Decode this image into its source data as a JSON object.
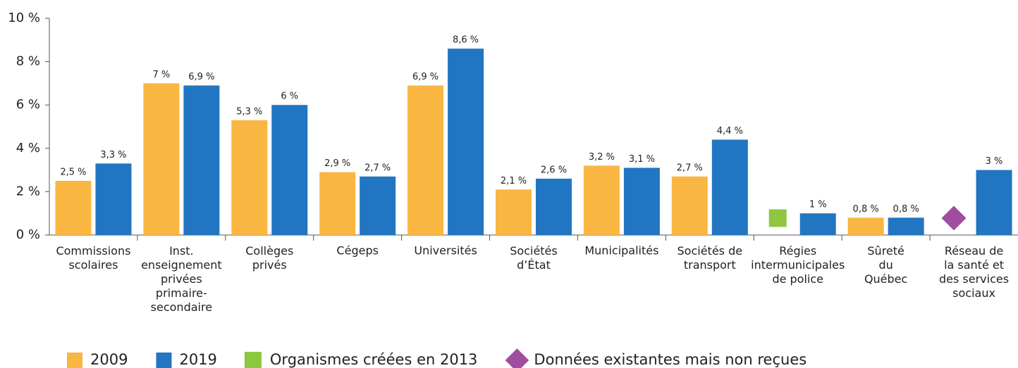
{
  "chart_data": {
    "type": "bar",
    "categories": [
      "Commissions\nscolaires",
      "Inst.\nenseignement\nprivées\nprimaire-\nsecondaire",
      "Collèges\nprivés",
      "Cégeps",
      "Universités",
      "Sociétés\nd’État",
      "Municipalités",
      "Sociétés de\ntransport",
      "Régies\nintermunicipales\nde police",
      "Sûreté\ndu\nQuébec",
      "Réseau de\nla santé et\ndes services\nsociaux"
    ],
    "series": [
      {
        "name": "2009",
        "color": "#f9b642",
        "values": [
          2.5,
          7,
          5.3,
          2.9,
          6.9,
          2.1,
          3.2,
          2.7,
          null,
          0.8,
          null
        ],
        "value_labels": [
          "2,5 %",
          "7 %",
          "5,3 %",
          "2,9 %",
          "6,9 %",
          "2,1 %",
          "3,2 %",
          "2,7 %",
          null,
          "0,8 %",
          null
        ]
      },
      {
        "name": "2019",
        "color": "#2176c1",
        "values": [
          3.3,
          6.9,
          6,
          2.7,
          8.6,
          2.6,
          3.1,
          4.4,
          1,
          0.8,
          3
        ],
        "value_labels": [
          "3,3 %",
          "6,9 %",
          "6 %",
          "2,7 %",
          "8,6 %",
          "2,6 %",
          "3,1 %",
          "4,4 %",
          "1 %",
          "0,8 %",
          "3 %"
        ]
      }
    ],
    "markers": [
      {
        "name": "Organismes créées en 2013",
        "color": "#8dc63f",
        "shape": "square",
        "category": 8
      },
      {
        "name": "Données existantes mais non reçues",
        "color": "#a04d9f",
        "shape": "diamond",
        "category": 10
      }
    ],
    "ylim": [
      0,
      10
    ],
    "yticks": [
      {
        "value": 0,
        "label": "0 %"
      },
      {
        "value": 2,
        "label": "2 %"
      },
      {
        "value": 4,
        "label": "4 %"
      },
      {
        "value": 6,
        "label": "6 %"
      },
      {
        "value": 8,
        "label": "8 %"
      },
      {
        "value": 10,
        "label": "10 %"
      }
    ],
    "grid": false
  }
}
